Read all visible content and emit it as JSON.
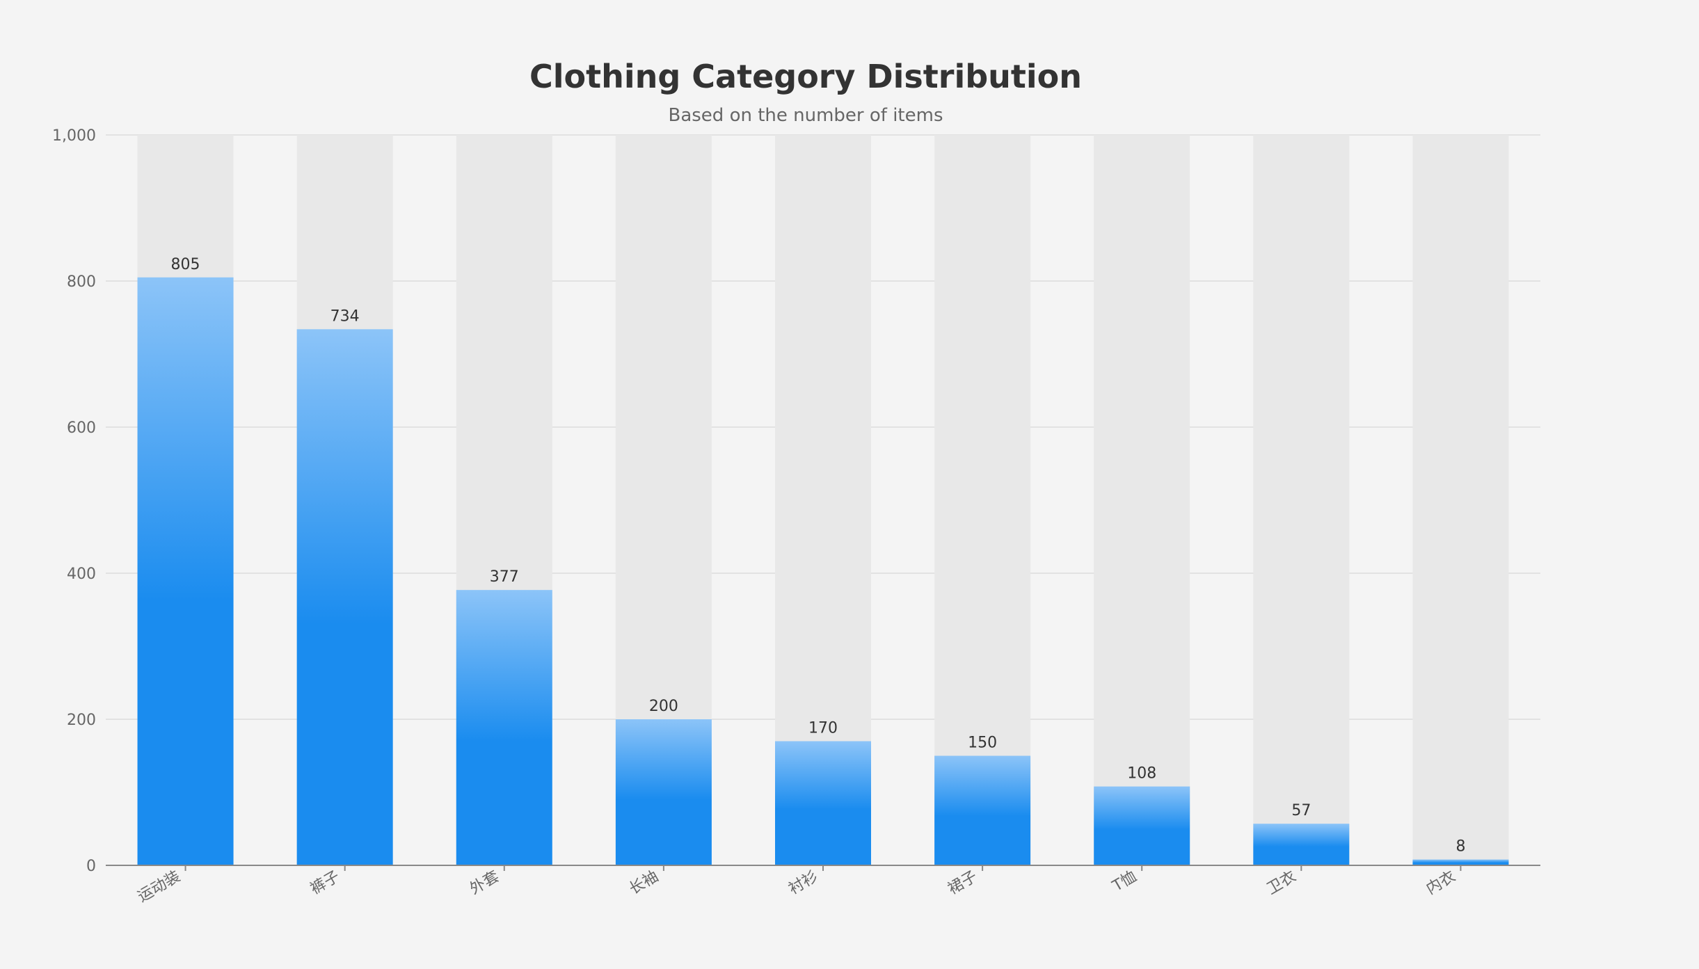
{
  "chart_data": {
    "type": "bar",
    "title": "Clothing Category Distribution",
    "subtitle": "Based on the number of items",
    "xlabel": "",
    "ylabel": "",
    "categories": [
      "运动装",
      "裤子",
      "外套",
      "长袖",
      "衬衫",
      "裙子",
      "T恤",
      "卫衣",
      "内衣"
    ],
    "values": [
      805,
      734,
      377,
      200,
      170,
      150,
      108,
      57,
      8
    ],
    "ylim": [
      0,
      1000
    ],
    "y_ticks": [
      0,
      200,
      400,
      600,
      800,
      1000
    ],
    "y_tick_labels": [
      "0",
      "200",
      "400",
      "600",
      "800",
      "1,000"
    ],
    "grid": true,
    "legend": "none",
    "colors": {
      "bar_top": "#8cc4f8",
      "bar_bottom": "#1a8cef",
      "bar_background": "#e8e8e8",
      "grid": "#e2e2e2",
      "axis": "#888888",
      "background": "#f4f4f4"
    }
  }
}
